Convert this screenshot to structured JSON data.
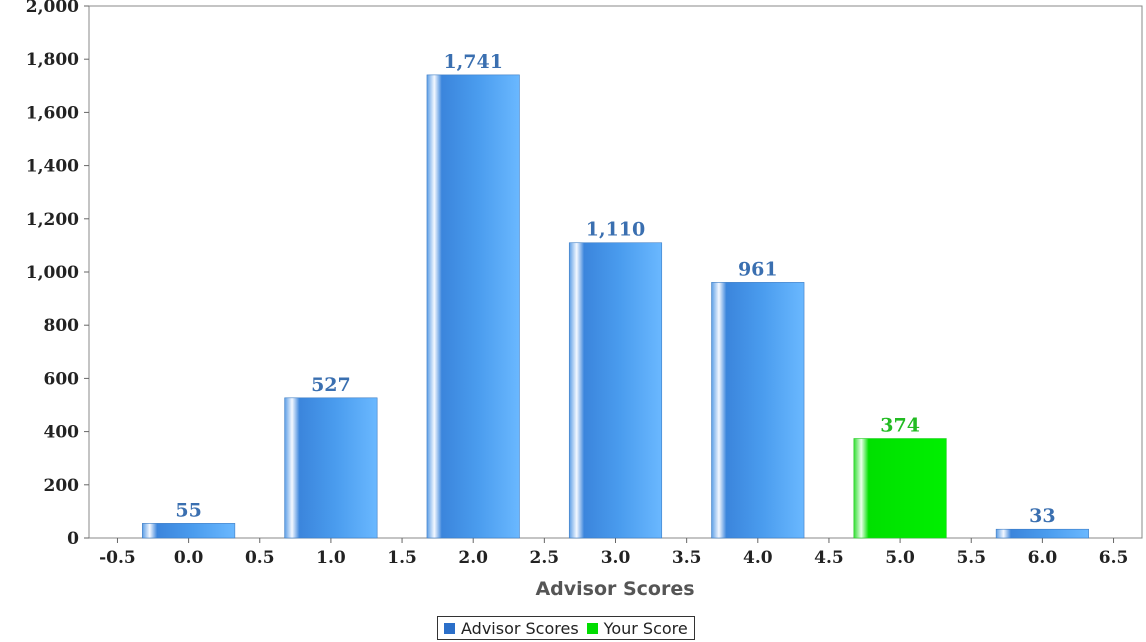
{
  "chart_data": {
    "type": "bar",
    "title": "",
    "xlabel": "Advisor Scores",
    "ylabel": "",
    "x_ticks": [
      "-0.5",
      "0.0",
      "0.5",
      "1.0",
      "1.5",
      "2.0",
      "2.5",
      "3.0",
      "3.5",
      "4.0",
      "4.5",
      "5.0",
      "5.5",
      "6.0",
      "6.5"
    ],
    "y_ticks": [
      "0",
      "200",
      "400",
      "600",
      "800",
      "1,000",
      "1,200",
      "1,400",
      "1,600",
      "1,800",
      "2,000"
    ],
    "xlim": [
      -0.7,
      6.7
    ],
    "ylim": [
      0,
      2000
    ],
    "bar_width": 0.65,
    "legend_position": "bottom-center",
    "series": [
      {
        "name": "Advisor Scores",
        "color": "#3b8fe0",
        "points": [
          {
            "x": 0,
            "value": 55,
            "label": "55"
          },
          {
            "x": 1,
            "value": 527,
            "label": "527"
          },
          {
            "x": 2,
            "value": 1741,
            "label": "1,741"
          },
          {
            "x": 3,
            "value": 1110,
            "label": "1,110"
          },
          {
            "x": 4,
            "value": 961,
            "label": "961"
          },
          {
            "x": 6,
            "value": 33,
            "label": "33"
          }
        ]
      },
      {
        "name": "Your Score",
        "color": "#00ee00",
        "points": [
          {
            "x": 5,
            "value": 374,
            "label": "374"
          }
        ]
      }
    ]
  },
  "colors": {
    "advisor_label": "#3a6fb0",
    "your_label": "#22bb22"
  },
  "legend": {
    "items": [
      {
        "label": "Advisor Scores",
        "color": "#2b6fc9"
      },
      {
        "label": "Your Score",
        "color": "#00dd00"
      }
    ]
  }
}
